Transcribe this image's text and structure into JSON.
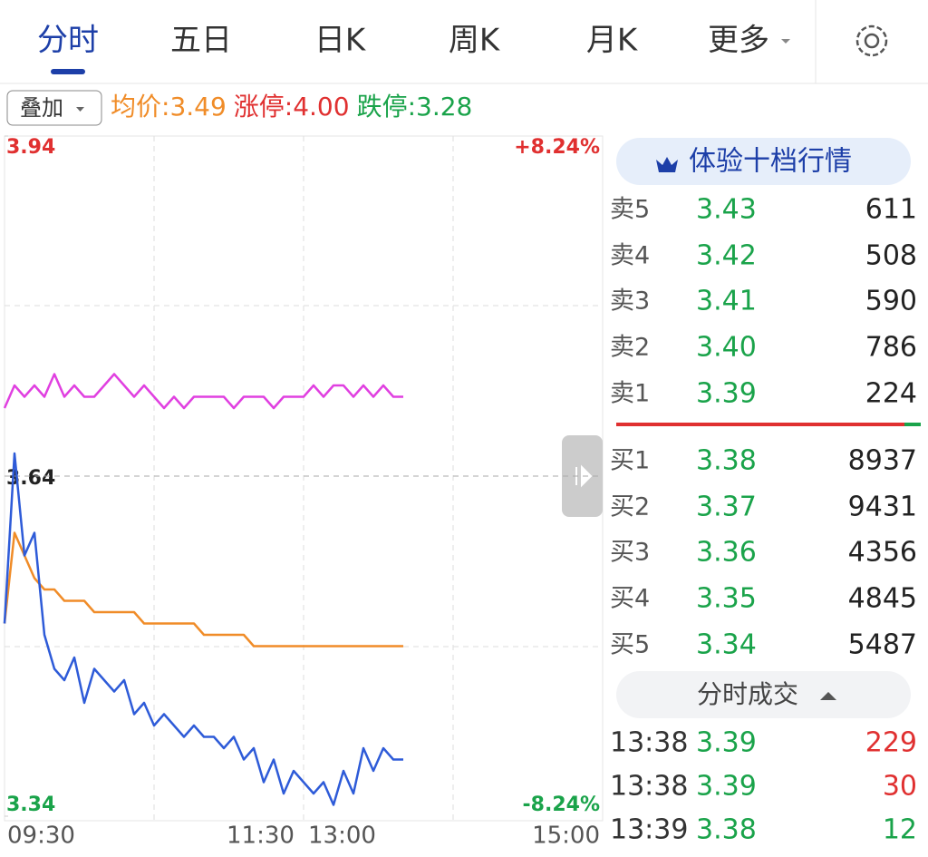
{
  "tabs": [
    "分时",
    "五日",
    "日K",
    "周K",
    "月K",
    "更多"
  ],
  "overlay_button": "叠加",
  "stats": [
    {
      "label": "均价:",
      "value": "3.49",
      "color": "#f08c28"
    },
    {
      "label": "涨停:",
      "value": "4.00",
      "color": "#e03030"
    },
    {
      "label": "跌停:",
      "value": "3.28",
      "color": "#1aa34a"
    }
  ],
  "chart_data": {
    "type": "line",
    "ylim": [
      3.34,
      3.94
    ],
    "yticks": [
      3.34,
      3.64,
      3.94
    ],
    "pct_labels": [
      "+8.24%",
      "-8.24%"
    ],
    "x_labels": [
      "09:30",
      "11:30",
      "13:00",
      "15:00"
    ],
    "series": [
      {
        "color": "#e040e0",
        "values": [
          3.7,
          3.72,
          3.71,
          3.72,
          3.71,
          3.73,
          3.71,
          3.72,
          3.71,
          3.71,
          3.72,
          3.73,
          3.72,
          3.71,
          3.72,
          3.71,
          3.7,
          3.71,
          3.7,
          3.71,
          3.71,
          3.71,
          3.71,
          3.7,
          3.71,
          3.71,
          3.71,
          3.7,
          3.71,
          3.71,
          3.71,
          3.72,
          3.71,
          3.72,
          3.72,
          3.71,
          3.72,
          3.71,
          3.72,
          3.71,
          3.71,
          null,
          null,
          null,
          null,
          null,
          null,
          null,
          null,
          null,
          null,
          null,
          null,
          null,
          null,
          null,
          null,
          null,
          null,
          null,
          null
        ]
      },
      {
        "color": "#f08c28",
        "values": [
          3.51,
          3.59,
          3.57,
          3.55,
          3.54,
          3.54,
          3.53,
          3.53,
          3.53,
          3.52,
          3.52,
          3.52,
          3.52,
          3.52,
          3.51,
          3.51,
          3.51,
          3.51,
          3.51,
          3.51,
          3.5,
          3.5,
          3.5,
          3.5,
          3.5,
          3.49,
          3.49,
          3.49,
          3.49,
          3.49,
          3.49,
          3.49,
          3.49,
          3.49,
          3.49,
          3.49,
          3.49,
          3.49,
          3.49,
          3.49,
          3.49,
          null,
          null,
          null,
          null,
          null,
          null,
          null,
          null,
          null,
          null,
          null,
          null,
          null,
          null,
          null,
          null,
          null,
          null,
          null,
          null
        ]
      },
      {
        "color": "#2e5bd8",
        "values": [
          3.51,
          3.66,
          3.57,
          3.59,
          3.5,
          3.47,
          3.46,
          3.48,
          3.44,
          3.47,
          3.46,
          3.45,
          3.46,
          3.43,
          3.44,
          3.42,
          3.43,
          3.42,
          3.41,
          3.42,
          3.41,
          3.41,
          3.4,
          3.41,
          3.39,
          3.4,
          3.37,
          3.39,
          3.36,
          3.38,
          3.37,
          3.36,
          3.37,
          3.35,
          3.38,
          3.36,
          3.4,
          3.38,
          3.4,
          3.39,
          3.39,
          null,
          null,
          null,
          null,
          null,
          null,
          null,
          null,
          null,
          null,
          null,
          null,
          null,
          null,
          null,
          null,
          null,
          null,
          null,
          null
        ]
      }
    ]
  },
  "order_book": {
    "upgrade_button": "体验十档行情",
    "asks": [
      [
        "卖5",
        "3.43",
        "611"
      ],
      [
        "卖4",
        "3.42",
        "508"
      ],
      [
        "卖3",
        "3.41",
        "590"
      ],
      [
        "卖2",
        "3.40",
        "786"
      ],
      [
        "卖1",
        "3.39",
        "224"
      ]
    ],
    "bids": [
      [
        "买1",
        "3.38",
        "8937"
      ],
      [
        "买2",
        "3.37",
        "9431"
      ],
      [
        "买3",
        "3.36",
        "4356"
      ],
      [
        "买4",
        "3.35",
        "4845"
      ],
      [
        "买5",
        "3.34",
        "5487"
      ]
    ]
  },
  "trades": {
    "title": "分时成交",
    "rows": [
      {
        "time": "13:38",
        "price": "3.39",
        "volume": "229",
        "color": "#e03030"
      },
      {
        "time": "13:38",
        "price": "3.39",
        "volume": "30",
        "color": "#e03030"
      },
      {
        "time": "13:39",
        "price": "3.38",
        "volume": "12",
        "color": "#1aa34a"
      }
    ]
  }
}
